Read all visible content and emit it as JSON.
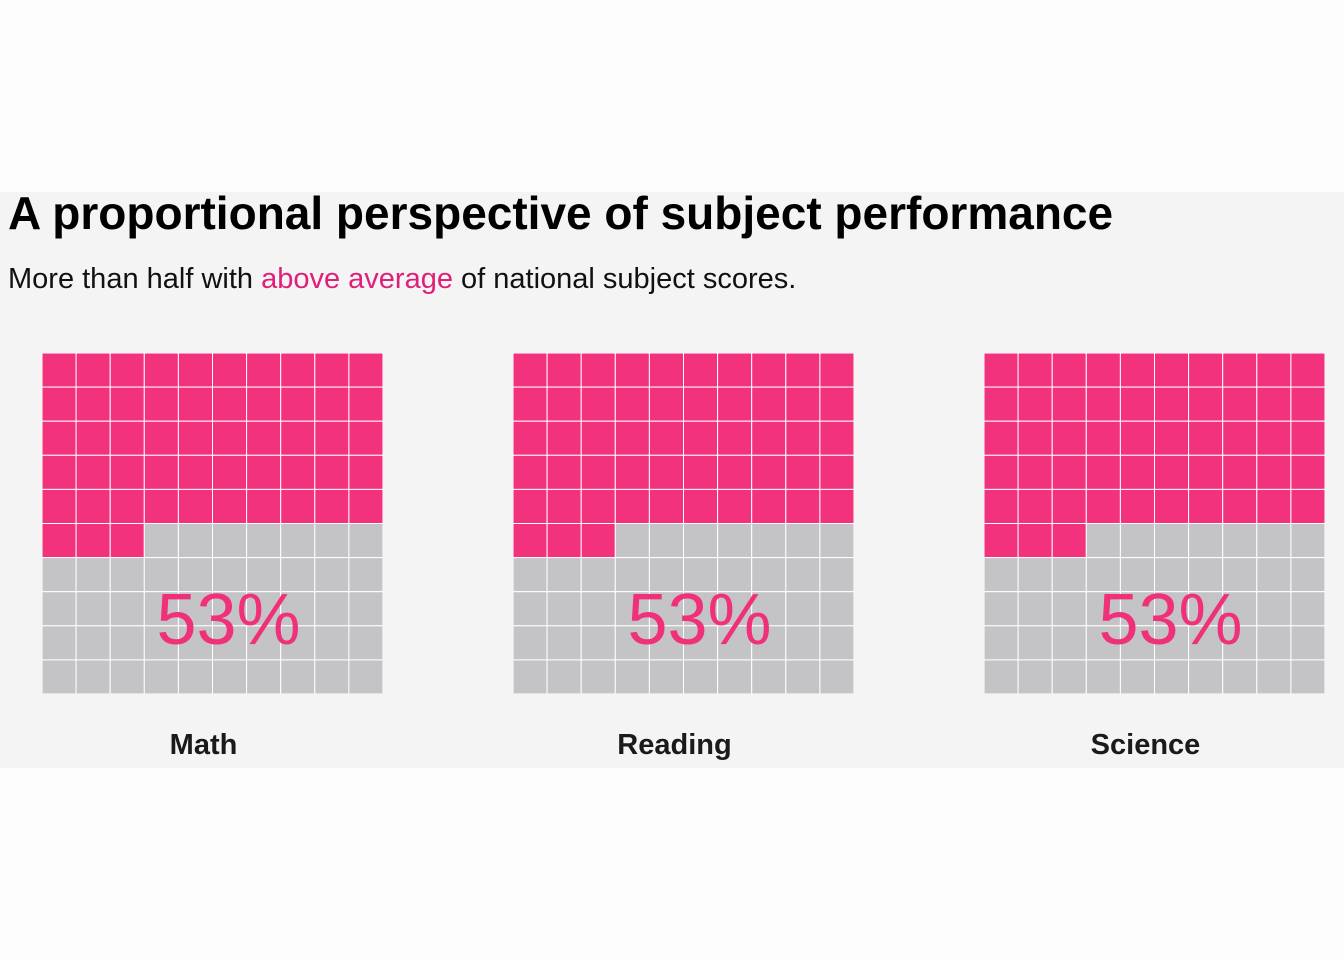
{
  "title": "A proportional perspective of subject performance",
  "subtitle": {
    "before": "More than half with ",
    "highlight": "above average",
    "after": " of national subject scores."
  },
  "colors": {
    "filled": "#f2327c",
    "empty": "#c4c4c6",
    "grid_line": "#ffffff",
    "highlight_text": "#e01f78",
    "panel_background": "#f4f4f4"
  },
  "chart_data": [
    {
      "type": "waffle",
      "grid": [
        10,
        10
      ],
      "fill_direction": "top-down",
      "category": "Math",
      "value": 53,
      "value_label": "53%"
    },
    {
      "type": "waffle",
      "grid": [
        10,
        10
      ],
      "fill_direction": "top-down",
      "category": "Reading",
      "value": 53,
      "value_label": "53%"
    },
    {
      "type": "waffle",
      "grid": [
        10,
        10
      ],
      "fill_direction": "top-down",
      "category": "Science",
      "value": 53,
      "value_label": "53%"
    }
  ]
}
